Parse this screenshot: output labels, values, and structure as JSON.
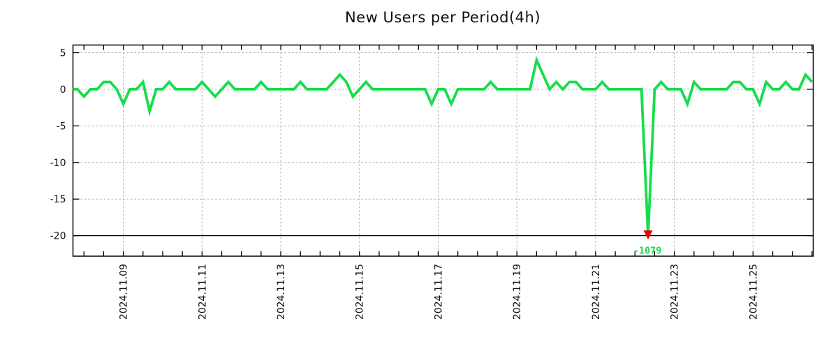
{
  "page": {
    "background": "#ffffff"
  },
  "chart_data": {
    "type": "line",
    "title": "New Users per Period(4h)",
    "xlabel": "",
    "ylabel": "",
    "grid": true,
    "legend": "none",
    "line_color": "#16dd4c",
    "axis_color": "#000000",
    "text_color": "#111111",
    "grid_color": "#aaaaaa",
    "ylim": [
      -22.8,
      6.05
    ],
    "xlim_hours": [
      1.3,
      452.7
    ],
    "y_ticks": [
      5,
      0,
      -5,
      -10,
      -15,
      -20
    ],
    "clip_line": {
      "value": -20,
      "style": "solid",
      "color": "#000000"
    },
    "x_ticks": [
      {
        "hour": 32,
        "label": "2024.11.09"
      },
      {
        "hour": 80,
        "label": "2024.11.11"
      },
      {
        "hour": 128,
        "label": "2024.11.13"
      },
      {
        "hour": 176,
        "label": "2024.11.15"
      },
      {
        "hour": 224,
        "label": "2024.11.17"
      },
      {
        "hour": 272,
        "label": "2024.11.19"
      },
      {
        "hour": 320,
        "label": "2024.11.21"
      },
      {
        "hour": 368,
        "label": "2024.11.23"
      },
      {
        "hour": 416,
        "label": "2024.11.25"
      }
    ],
    "minor_ticks": {
      "first_hour": 8,
      "step_hours": 12,
      "last_hour": 452
    },
    "series": [
      {
        "name": "new-users-per-4h",
        "start_time": "2024-11-07 16:00",
        "step_hours": 4,
        "values": [
          0,
          0,
          -1,
          0,
          0,
          1,
          1,
          0,
          -2,
          0,
          0,
          1,
          -3,
          0,
          0,
          1,
          0,
          0,
          0,
          0,
          1,
          0,
          -1,
          0,
          1,
          0,
          0,
          0,
          0,
          1,
          0,
          0,
          0,
          0,
          0,
          1,
          0,
          0,
          0,
          0,
          1,
          2,
          1,
          -1,
          0,
          1,
          0,
          0,
          0,
          0,
          0,
          0,
          0,
          0,
          0,
          -2,
          0,
          0,
          -2,
          0,
          0,
          0,
          0,
          0,
          1,
          0,
          0,
          0,
          0,
          0,
          0,
          4,
          2,
          0,
          1,
          0,
          1,
          1,
          0,
          0,
          0,
          1,
          0,
          0,
          0,
          0,
          0,
          0,
          -1079,
          0,
          1,
          0,
          0,
          0,
          -2,
          1,
          0,
          0,
          0,
          0,
          0,
          1,
          1,
          0,
          0,
          -2,
          1,
          0,
          0,
          1,
          0,
          0,
          2,
          1
        ]
      }
    ],
    "annotation": {
      "label": "-1079",
      "value": -1079,
      "point_index": 88,
      "marker": "down-triangle",
      "marker_color": "#e60000",
      "label_color": "#16dd4c"
    }
  }
}
